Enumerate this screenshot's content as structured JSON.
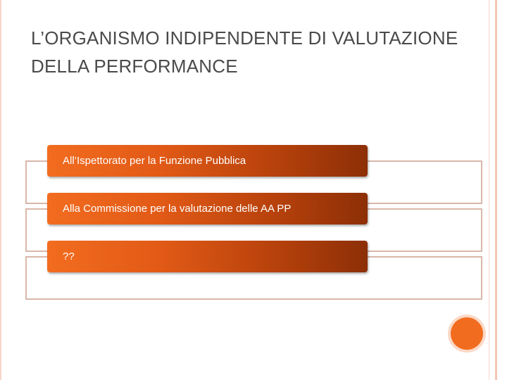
{
  "slide": {
    "title": "L’ORGANISMO INDIPENDENTE DI VALUTAZIONE DELLA PERFORMANCE",
    "items": [
      {
        "label": "All’Ispettorato per la Funzione Pubblica"
      },
      {
        "label": "Alla Commissione per la valutazione delle AA PP"
      },
      {
        "label": "??"
      }
    ],
    "colors": {
      "accent": "#f26c1f",
      "banner_dark": "#8d2f06",
      "outline": "#d9b7a8",
      "title_text": "#4a4a4a",
      "frame": "#f3c6b3"
    }
  }
}
